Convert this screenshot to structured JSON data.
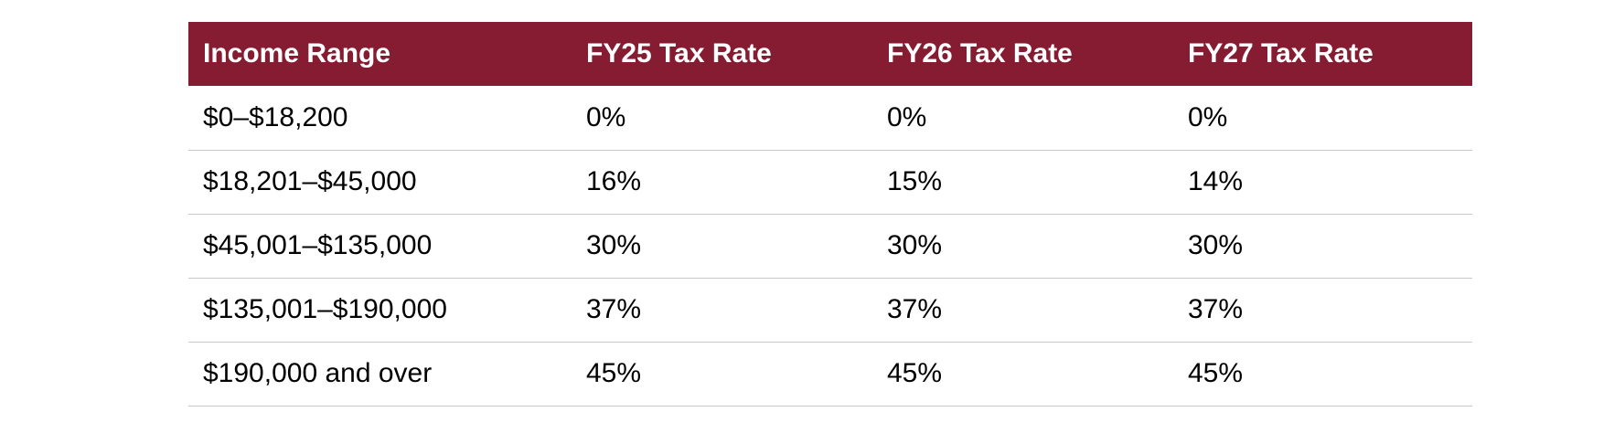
{
  "table": {
    "headers": [
      "Income Range",
      "FY25 Tax Rate",
      "FY26 Tax Rate",
      "FY27 Tax Rate"
    ],
    "rows": [
      [
        "$0–$18,200",
        "0%",
        "0%",
        "0%"
      ],
      [
        "$18,201–$45,000",
        "16%",
        "15%",
        "14%"
      ],
      [
        "$45,001–$135,000",
        "30%",
        "30%",
        "30%"
      ],
      [
        "$135,001–$190,000",
        "37%",
        "37%",
        "37%"
      ],
      [
        "$190,000 and over",
        "45%",
        "45%",
        "45%"
      ]
    ]
  },
  "colors": {
    "header_bg": "#861c31",
    "header_text": "#ffffff",
    "row_divider": "#c8c8c8"
  }
}
